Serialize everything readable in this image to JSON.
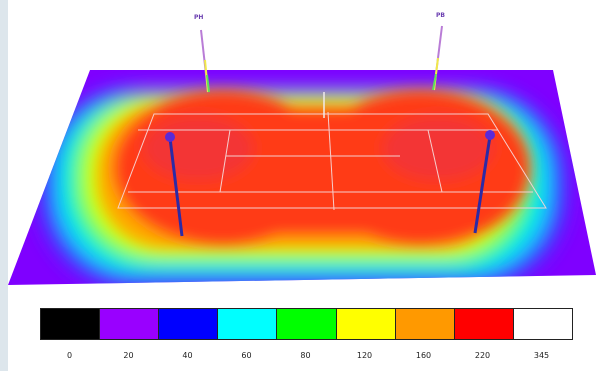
{
  "poles": [
    {
      "id": "pole-back-left",
      "tag": "PH"
    },
    {
      "id": "pole-back-right",
      "tag": "PB"
    }
  ],
  "legend": {
    "colors": [
      "#000000",
      "#9900ff",
      "#0000ff",
      "#00ffff",
      "#00ff00",
      "#ffff00",
      "#ff9900",
      "#ff0000",
      "#ffffff"
    ],
    "ticks": [
      "0",
      "20",
      "40",
      "60",
      "80",
      "120",
      "160",
      "220",
      "345"
    ]
  }
}
